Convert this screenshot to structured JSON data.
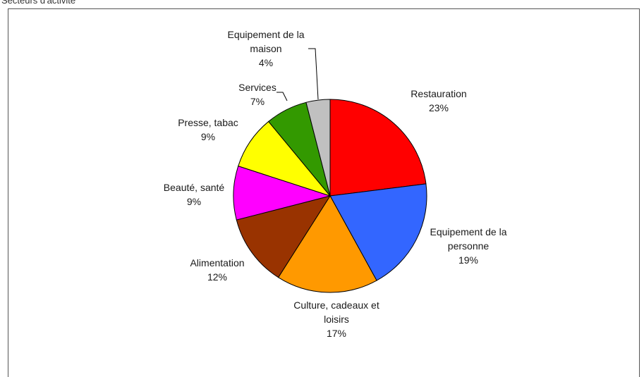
{
  "caption": "Secteurs d'activité",
  "chart_data": {
    "type": "pie",
    "title": "",
    "slices": [
      {
        "label": [
          "Restauration"
        ],
        "pct_text": "23%",
        "value": 23,
        "color": "#ff0000"
      },
      {
        "label": [
          "Equipement de la",
          "personne"
        ],
        "pct_text": "19%",
        "value": 19,
        "color": "#3366ff"
      },
      {
        "label": [
          "Culture, cadeaux et",
          "loisirs"
        ],
        "pct_text": "17%",
        "value": 17,
        "color": "#ff9900"
      },
      {
        "label": [
          "Alimentation"
        ],
        "pct_text": "12%",
        "value": 12,
        "color": "#993300"
      },
      {
        "label": [
          "Beauté, santé"
        ],
        "pct_text": "9%",
        "value": 9,
        "color": "#ff00ff"
      },
      {
        "label": [
          "Presse, tabac"
        ],
        "pct_text": "9%",
        "value": 9,
        "color": "#ffff00"
      },
      {
        "label": [
          "Services"
        ],
        "pct_text": "7%",
        "value": 7,
        "color": "#339900"
      },
      {
        "label": [
          "Equipement de la",
          "maison"
        ],
        "pct_text": "4%",
        "value": 4,
        "color": "#c0c0c0"
      }
    ],
    "start_angle_deg": 0,
    "direction": "clockwise"
  }
}
